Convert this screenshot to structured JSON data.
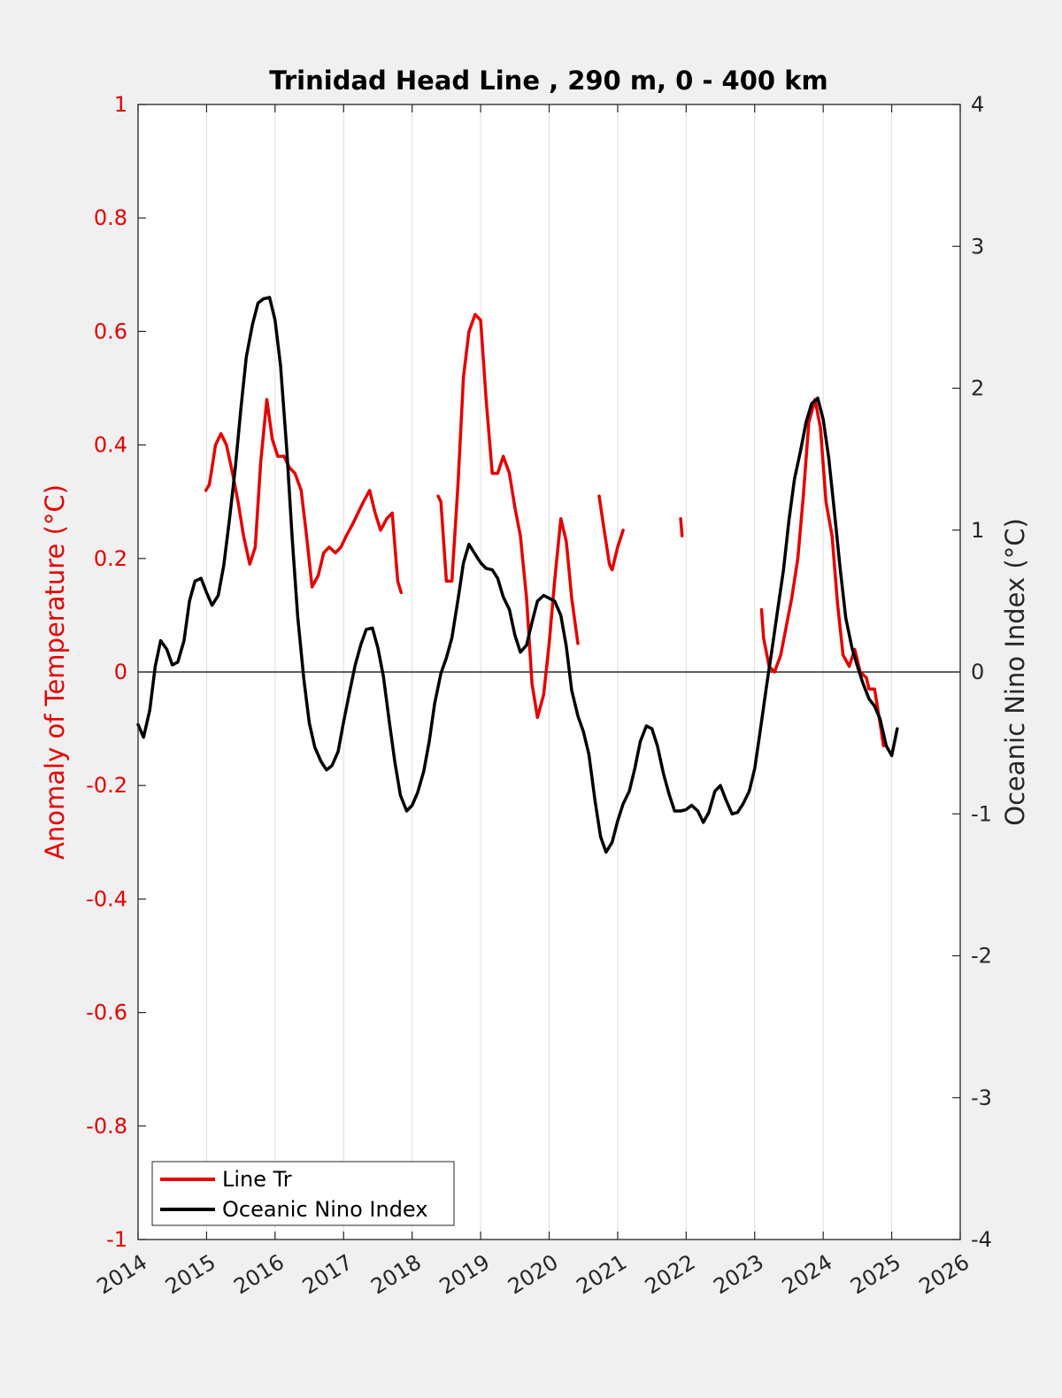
{
  "chart_data": {
    "type": "line",
    "title": "Trinidad Head Line , 290 m, 0 - 400 km",
    "ylabel_left": "Anomaly of Temperature (°C)",
    "ylabel_right": "Oceanic Nino Index (°C)",
    "xlim": [
      2014,
      2026
    ],
    "ylim_left": [
      -1,
      1
    ],
    "ylim_right": [
      -4,
      4
    ],
    "x_ticks": [
      "2014",
      "2015",
      "2016",
      "2017",
      "2018",
      "2019",
      "2020",
      "2021",
      "2022",
      "2023",
      "2024",
      "2025",
      "2026"
    ],
    "y_left_ticks": [
      "-1",
      "-0.8",
      "-0.6",
      "-0.4",
      "-0.2",
      "0",
      "0.2",
      "0.4",
      "0.6",
      "0.8",
      "1"
    ],
    "y_right_ticks": [
      "-4",
      "-3",
      "-2",
      "-1",
      "0",
      "1",
      "2",
      "3",
      "4"
    ],
    "grid": "vertical",
    "zero_line": true,
    "legend_position": "bottom-left",
    "colors": {
      "line_tr": "#e60000",
      "oni": "#000000",
      "left_axis": "#e60000"
    },
    "series": [
      {
        "name": "Line Tr",
        "axis": "left",
        "segments": [
          [
            [
              2014.99,
              0.32
            ],
            [
              2015.04,
              0.33
            ],
            [
              2015.08,
              0.36
            ],
            [
              2015.13,
              0.4
            ],
            [
              2015.21,
              0.42
            ],
            [
              2015.29,
              0.4
            ],
            [
              2015.38,
              0.35
            ],
            [
              2015.46,
              0.3
            ],
            [
              2015.54,
              0.24
            ],
            [
              2015.63,
              0.19
            ],
            [
              2015.71,
              0.22
            ],
            [
              2015.79,
              0.37
            ],
            [
              2015.88,
              0.48
            ],
            [
              2015.96,
              0.41
            ],
            [
              2016.04,
              0.38
            ],
            [
              2016.13,
              0.38
            ],
            [
              2016.21,
              0.36
            ],
            [
              2016.29,
              0.35
            ],
            [
              2016.38,
              0.32
            ],
            [
              2016.46,
              0.24
            ],
            [
              2016.54,
              0.15
            ],
            [
              2016.63,
              0.17
            ],
            [
              2016.71,
              0.21
            ],
            [
              2016.79,
              0.22
            ],
            [
              2016.88,
              0.21
            ],
            [
              2016.96,
              0.22
            ],
            [
              2017.04,
              0.24
            ],
            [
              2017.13,
              0.26
            ],
            [
              2017.21,
              0.28
            ],
            [
              2017.29,
              0.3
            ],
            [
              2017.38,
              0.32
            ],
            [
              2017.46,
              0.28
            ],
            [
              2017.54,
              0.25
            ],
            [
              2017.63,
              0.27
            ],
            [
              2017.71,
              0.28
            ],
            [
              2017.79,
              0.16
            ],
            [
              2017.84,
              0.14
            ]
          ],
          [
            [
              2018.38,
              0.31
            ],
            [
              2018.42,
              0.3
            ],
            [
              2018.5,
              0.16
            ],
            [
              2018.58,
              0.16
            ],
            [
              2018.67,
              0.33
            ],
            [
              2018.75,
              0.52
            ],
            [
              2018.83,
              0.6
            ],
            [
              2018.92,
              0.63
            ],
            [
              2019.0,
              0.62
            ],
            [
              2019.08,
              0.48
            ],
            [
              2019.17,
              0.35
            ],
            [
              2019.25,
              0.35
            ],
            [
              2019.33,
              0.38
            ],
            [
              2019.42,
              0.35
            ],
            [
              2019.5,
              0.29
            ],
            [
              2019.58,
              0.24
            ],
            [
              2019.67,
              0.13
            ],
            [
              2019.75,
              -0.02
            ],
            [
              2019.83,
              -0.08
            ],
            [
              2019.92,
              -0.04
            ],
            [
              2020.0,
              0.05
            ],
            [
              2020.08,
              0.16
            ],
            [
              2020.17,
              0.27
            ],
            [
              2020.25,
              0.23
            ],
            [
              2020.33,
              0.13
            ],
            [
              2020.42,
              0.05
            ]
          ],
          [
            [
              2020.73,
              0.31
            ],
            [
              2020.79,
              0.26
            ],
            [
              2020.88,
              0.19
            ],
            [
              2020.92,
              0.18
            ],
            [
              2021.0,
              0.22
            ],
            [
              2021.08,
              0.25
            ]
          ],
          [
            [
              2021.92,
              0.27
            ],
            [
              2021.94,
              0.24
            ]
          ],
          [
            [
              2023.1,
              0.11
            ],
            [
              2023.13,
              0.06
            ],
            [
              2023.21,
              0.01
            ],
            [
              2023.29,
              0.0
            ],
            [
              2023.38,
              0.03
            ],
            [
              2023.46,
              0.08
            ],
            [
              2023.54,
              0.13
            ],
            [
              2023.63,
              0.2
            ],
            [
              2023.71,
              0.31
            ],
            [
              2023.79,
              0.44
            ],
            [
              2023.88,
              0.48
            ],
            [
              2023.96,
              0.43
            ],
            [
              2024.04,
              0.3
            ],
            [
              2024.13,
              0.24
            ],
            [
              2024.21,
              0.12
            ],
            [
              2024.29,
              0.03
            ],
            [
              2024.38,
              0.01
            ],
            [
              2024.46,
              0.04
            ],
            [
              2024.54,
              0.0
            ],
            [
              2024.63,
              -0.01
            ],
            [
              2024.67,
              -0.03
            ],
            [
              2024.75,
              -0.03
            ],
            [
              2024.83,
              -0.09
            ],
            [
              2024.88,
              -0.13
            ]
          ]
        ]
      },
      {
        "name": "Oceanic Nino Index",
        "axis": "right",
        "segments": [
          [
            [
              2014.0,
              -0.37
            ],
            [
              2014.08,
              -0.46
            ],
            [
              2014.17,
              -0.27
            ],
            [
              2014.25,
              0.04
            ],
            [
              2014.33,
              0.22
            ],
            [
              2014.42,
              0.16
            ],
            [
              2014.5,
              0.05
            ],
            [
              2014.58,
              0.07
            ],
            [
              2014.67,
              0.22
            ],
            [
              2014.75,
              0.5
            ],
            [
              2014.83,
              0.64
            ],
            [
              2014.92,
              0.66
            ],
            [
              2015.0,
              0.56
            ],
            [
              2015.08,
              0.47
            ],
            [
              2015.17,
              0.54
            ],
            [
              2015.25,
              0.75
            ],
            [
              2015.33,
              1.06
            ],
            [
              2015.42,
              1.44
            ],
            [
              2015.5,
              1.85
            ],
            [
              2015.58,
              2.22
            ],
            [
              2015.67,
              2.45
            ],
            [
              2015.75,
              2.6
            ],
            [
              2015.83,
              2.63
            ],
            [
              2015.92,
              2.64
            ],
            [
              2016.0,
              2.48
            ],
            [
              2016.08,
              2.16
            ],
            [
              2016.17,
              1.57
            ],
            [
              2016.25,
              0.94
            ],
            [
              2016.33,
              0.39
            ],
            [
              2016.42,
              -0.05
            ],
            [
              2016.5,
              -0.36
            ],
            [
              2016.58,
              -0.53
            ],
            [
              2016.67,
              -0.63
            ],
            [
              2016.75,
              -0.69
            ],
            [
              2016.83,
              -0.66
            ],
            [
              2016.92,
              -0.56
            ],
            [
              2017.0,
              -0.35
            ],
            [
              2017.08,
              -0.16
            ],
            [
              2017.17,
              0.05
            ],
            [
              2017.25,
              0.19
            ],
            [
              2017.33,
              0.3
            ],
            [
              2017.42,
              0.31
            ],
            [
              2017.5,
              0.17
            ],
            [
              2017.58,
              -0.03
            ],
            [
              2017.67,
              -0.36
            ],
            [
              2017.75,
              -0.64
            ],
            [
              2017.83,
              -0.87
            ],
            [
              2017.92,
              -0.98
            ],
            [
              2018.0,
              -0.94
            ],
            [
              2018.08,
              -0.85
            ],
            [
              2018.17,
              -0.7
            ],
            [
              2018.25,
              -0.49
            ],
            [
              2018.33,
              -0.22
            ],
            [
              2018.42,
              -0.01
            ],
            [
              2018.5,
              0.1
            ],
            [
              2018.58,
              0.24
            ],
            [
              2018.67,
              0.51
            ],
            [
              2018.75,
              0.77
            ],
            [
              2018.83,
              0.9
            ],
            [
              2018.92,
              0.83
            ],
            [
              2019.0,
              0.77
            ],
            [
              2019.08,
              0.73
            ],
            [
              2019.17,
              0.72
            ],
            [
              2019.25,
              0.66
            ],
            [
              2019.33,
              0.53
            ],
            [
              2019.42,
              0.44
            ],
            [
              2019.5,
              0.26
            ],
            [
              2019.58,
              0.14
            ],
            [
              2019.67,
              0.19
            ],
            [
              2019.75,
              0.35
            ],
            [
              2019.83,
              0.5
            ],
            [
              2019.92,
              0.54
            ],
            [
              2020.0,
              0.52
            ],
            [
              2020.08,
              0.5
            ],
            [
              2020.17,
              0.4
            ],
            [
              2020.25,
              0.18
            ],
            [
              2020.33,
              -0.13
            ],
            [
              2020.42,
              -0.31
            ],
            [
              2020.5,
              -0.42
            ],
            [
              2020.58,
              -0.58
            ],
            [
              2020.67,
              -0.91
            ],
            [
              2020.75,
              -1.16
            ],
            [
              2020.83,
              -1.27
            ],
            [
              2020.92,
              -1.2
            ],
            [
              2021.0,
              -1.05
            ],
            [
              2021.08,
              -0.93
            ],
            [
              2021.17,
              -0.84
            ],
            [
              2021.25,
              -0.68
            ],
            [
              2021.33,
              -0.49
            ],
            [
              2021.42,
              -0.38
            ],
            [
              2021.5,
              -0.4
            ],
            [
              2021.58,
              -0.52
            ],
            [
              2021.67,
              -0.72
            ],
            [
              2021.75,
              -0.86
            ],
            [
              2021.83,
              -0.98
            ],
            [
              2021.92,
              -0.98
            ],
            [
              2022.0,
              -0.97
            ],
            [
              2022.08,
              -0.94
            ],
            [
              2022.17,
              -0.98
            ],
            [
              2022.25,
              -1.06
            ],
            [
              2022.33,
              -0.99
            ],
            [
              2022.42,
              -0.84
            ],
            [
              2022.5,
              -0.8
            ],
            [
              2022.58,
              -0.9
            ],
            [
              2022.67,
              -1.0
            ],
            [
              2022.75,
              -0.99
            ],
            [
              2022.83,
              -0.93
            ],
            [
              2022.92,
              -0.84
            ],
            [
              2023.0,
              -0.68
            ],
            [
              2023.08,
              -0.42
            ],
            [
              2023.17,
              -0.11
            ],
            [
              2023.25,
              0.15
            ],
            [
              2023.33,
              0.42
            ],
            [
              2023.42,
              0.72
            ],
            [
              2023.5,
              1.07
            ],
            [
              2023.58,
              1.36
            ],
            [
              2023.67,
              1.56
            ],
            [
              2023.75,
              1.76
            ],
            [
              2023.83,
              1.89
            ],
            [
              2023.92,
              1.93
            ],
            [
              2024.0,
              1.78
            ],
            [
              2024.08,
              1.51
            ],
            [
              2024.17,
              1.1
            ],
            [
              2024.25,
              0.72
            ],
            [
              2024.33,
              0.38
            ],
            [
              2024.42,
              0.17
            ],
            [
              2024.5,
              0.04
            ],
            [
              2024.58,
              -0.08
            ],
            [
              2024.67,
              -0.19
            ],
            [
              2024.75,
              -0.24
            ],
            [
              2024.83,
              -0.33
            ],
            [
              2024.92,
              -0.52
            ],
            [
              2025.0,
              -0.59
            ],
            [
              2025.08,
              -0.4
            ]
          ]
        ]
      }
    ]
  }
}
